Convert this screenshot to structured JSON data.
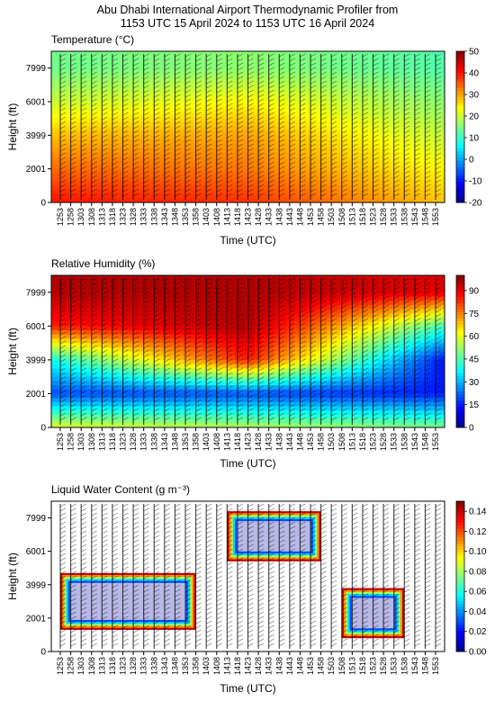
{
  "figure": {
    "title_line1": "Abu Dhabi International Airport Thermodynamic Profiler from",
    "title_line2": "1153 UTC 15 April 2024 to 1153 UTC 16 April 2024"
  },
  "chart_data": [
    {
      "type": "heatmap",
      "title": "Temperature (°C)",
      "xlabel": "Time (UTC)",
      "ylabel": "Height (ft)",
      "x_ticks": [
        "1253",
        "1258",
        "1303",
        "1308",
        "1313",
        "1318",
        "1323",
        "1328",
        "1333",
        "1338",
        "1343",
        "1348",
        "1353",
        "1358",
        "1403",
        "1408",
        "1413",
        "1418",
        "1423",
        "1428",
        "1433",
        "1438",
        "1443",
        "1448",
        "1453",
        "1458",
        "1503",
        "1508",
        "1513",
        "1518",
        "1523",
        "1528",
        "1533",
        "1538",
        "1543",
        "1548",
        "1553"
      ],
      "y_ticks": [
        0,
        2001,
        3999,
        6001,
        7999
      ],
      "ylim": [
        0,
        9000
      ],
      "colorbar": {
        "min": -20,
        "max": 50,
        "ticks": [
          -20,
          -10,
          0,
          10,
          20,
          30,
          40,
          50
        ],
        "colormap": "jet"
      },
      "overlay": "wind barbs",
      "field_at_heights": {
        "heights_ft": [
          0,
          2001,
          3999,
          6001,
          7999
        ],
        "approx_celsius_start": [
          40,
          34,
          28,
          20,
          14
        ],
        "approx_celsius_mid": [
          38,
          33,
          30,
          24,
          16
        ],
        "approx_celsius_end": [
          28,
          24,
          20,
          16,
          12
        ]
      }
    },
    {
      "type": "heatmap",
      "title": "Relative Humidity (%)",
      "xlabel": "Time (UTC)",
      "ylabel": "Height (ft)",
      "x_ticks": [
        "1253",
        "1258",
        "1303",
        "1308",
        "1313",
        "1318",
        "1323",
        "1328",
        "1333",
        "1338",
        "1343",
        "1348",
        "1353",
        "1358",
        "1403",
        "1408",
        "1413",
        "1418",
        "1423",
        "1428",
        "1433",
        "1438",
        "1443",
        "1448",
        "1453",
        "1458",
        "1503",
        "1508",
        "1513",
        "1518",
        "1523",
        "1528",
        "1533",
        "1538",
        "1543",
        "1548",
        "1553"
      ],
      "y_ticks": [
        0,
        2001,
        3999,
        6001,
        7999
      ],
      "ylim": [
        0,
        9000
      ],
      "colorbar": {
        "min": 0,
        "max": 100,
        "ticks": [
          0,
          15,
          30,
          45,
          60,
          75,
          90
        ],
        "colormap": "jet"
      },
      "overlay": "wind barbs",
      "field_at_heights": {
        "heights_ft": [
          0,
          2001,
          3999,
          6001,
          7999
        ],
        "approx_percent_start": [
          60,
          20,
          40,
          85,
          95
        ],
        "approx_percent_mid": [
          55,
          20,
          85,
          95,
          95
        ],
        "approx_percent_end": [
          50,
          15,
          15,
          45,
          90
        ]
      }
    },
    {
      "type": "heatmap",
      "title": "Liquid Water Content (g m⁻³)",
      "xlabel": "Time (UTC)",
      "ylabel": "Height (ft)",
      "x_ticks": [
        "1253",
        "1258",
        "1303",
        "1308",
        "1313",
        "1318",
        "1323",
        "1328",
        "1333",
        "1338",
        "1343",
        "1348",
        "1353",
        "1358",
        "1403",
        "1408",
        "1413",
        "1418",
        "1423",
        "1428",
        "1433",
        "1438",
        "1443",
        "1448",
        "1453",
        "1458",
        "1503",
        "1508",
        "1513",
        "1518",
        "1523",
        "1528",
        "1533",
        "1538",
        "1543",
        "1548",
        "1553"
      ],
      "y_ticks": [
        0,
        2001,
        3999,
        6001,
        7999
      ],
      "ylim": [
        0,
        9000
      ],
      "colorbar": {
        "min": 0,
        "max": 0.15,
        "ticks": [
          "0.00",
          "0.02",
          "0.04",
          "0.06",
          "0.08",
          "0.10",
          "0.12",
          "0.14"
        ],
        "colormap": "jet"
      },
      "overlay": "wind barbs",
      "cloud_regions_ft": [
        {
          "time_start": "1253",
          "time_end": "1358",
          "base": 1300,
          "top": 4700,
          "lwc_core": 0.01,
          "lwc_edge": 0.14
        },
        {
          "time_start": "1413",
          "time_end": "1458",
          "base": 5400,
          "top": 8400,
          "lwc_core": 0.01,
          "lwc_edge": 0.14
        },
        {
          "time_start": "1508",
          "time_end": "1538",
          "base": 800,
          "top": 3800,
          "lwc_core": 0.01,
          "lwc_edge": 0.14
        }
      ]
    }
  ]
}
